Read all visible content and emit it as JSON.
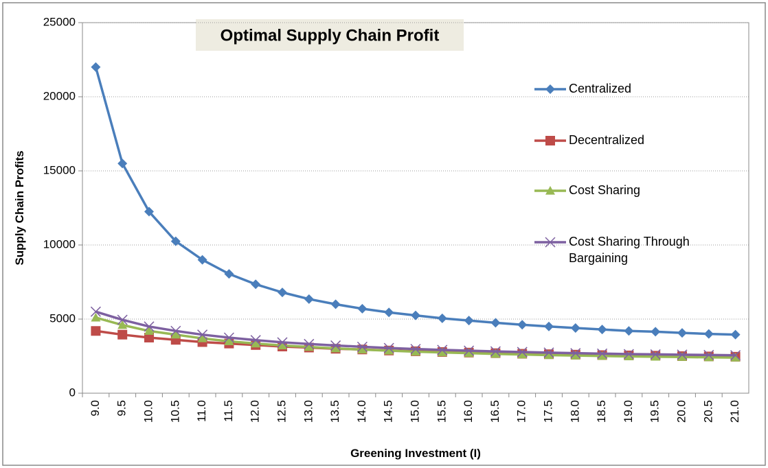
{
  "chart_data": {
    "type": "line",
    "title": "Optimal Supply Chain Profit",
    "x_label": "Greening Investment (I)",
    "y_label": "Supply Chain  Profits",
    "categories": [
      "9.0",
      "9.5",
      "10.0",
      "10.5",
      "11.0",
      "11.5",
      "12.0",
      "12.5",
      "13.0",
      "13.5",
      "14.0",
      "14.5",
      "15.0",
      "15.5",
      "16.0",
      "16.5",
      "17.0",
      "17.5",
      "18.0",
      "18.5",
      "19.0",
      "19.5",
      "20.0",
      "20.5",
      "21.0"
    ],
    "series": [
      {
        "name": "Centralized",
        "color": "#4a7ebb",
        "marker": "diamond",
        "values": [
          22000,
          15500,
          12250,
          10250,
          9000,
          8050,
          7350,
          6800,
          6350,
          6000,
          5700,
          5450,
          5250,
          5050,
          4900,
          4750,
          4620,
          4500,
          4400,
          4300,
          4200,
          4150,
          4070,
          4000,
          3950
        ]
      },
      {
        "name": "Decentralized",
        "color": "#be4b48",
        "marker": "square",
        "values": [
          4200,
          3950,
          3750,
          3600,
          3450,
          3350,
          3250,
          3150,
          3080,
          3000,
          2950,
          2880,
          2830,
          2780,
          2740,
          2700,
          2660,
          2630,
          2600,
          2570,
          2550,
          2530,
          2500,
          2480,
          2460
        ]
      },
      {
        "name": "Cost Sharing",
        "color": "#98b954",
        "marker": "triangle",
        "values": [
          5100,
          4600,
          4200,
          3950,
          3700,
          3500,
          3350,
          3220,
          3120,
          3020,
          2940,
          2870,
          2800,
          2750,
          2700,
          2650,
          2610,
          2570,
          2540,
          2510,
          2480,
          2460,
          2440,
          2420,
          2400
        ]
      },
      {
        "name": "Cost Sharing Through Bargaining",
        "color": "#7d60a0",
        "marker": "x",
        "values": [
          5500,
          4950,
          4500,
          4200,
          3950,
          3750,
          3580,
          3430,
          3320,
          3220,
          3130,
          3050,
          2980,
          2920,
          2870,
          2820,
          2780,
          2740,
          2700,
          2670,
          2640,
          2620,
          2600,
          2580,
          2560
        ]
      }
    ],
    "ylim": [
      0,
      25000
    ],
    "yticks": [
      0,
      5000,
      10000,
      15000,
      20000,
      25000
    ],
    "grid": true,
    "legend": "right"
  }
}
